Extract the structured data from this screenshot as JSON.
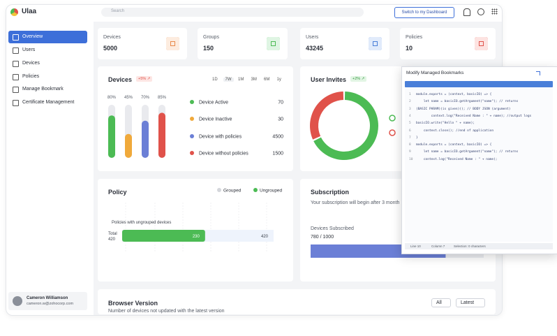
{
  "app": {
    "brand": "Ulaa",
    "search_placeholder": "Search",
    "switch_button": "Switch to my Dashboard"
  },
  "sidebar": {
    "nav": [
      "Overview",
      "Users",
      "Devices",
      "Policies",
      "Manage Bookmark",
      "Certificate Management"
    ],
    "user": {
      "name": "Cameron Williamson",
      "email": "cameron.w@zohocorp.com"
    }
  },
  "stats": [
    {
      "label": "Devices",
      "value": 5000
    },
    {
      "label": "Groups",
      "value": 150
    },
    {
      "label": "Users",
      "value": 43245
    },
    {
      "label": "Policies",
      "value": 10
    }
  ],
  "devices": {
    "title": "Devices",
    "badge": "+5% ↗",
    "ranges": [
      "1D",
      "7W",
      "1M",
      "3M",
      "6M",
      "1y"
    ],
    "bars": {
      "values": [
        80,
        45,
        70,
        85
      ],
      "value_labels": [
        "80%",
        "45%",
        "70%",
        "85%"
      ],
      "colors": [
        "#4cbb54",
        "#f0a93b",
        "#6b7fd6",
        "#e0524a"
      ]
    },
    "legend": [
      {
        "name": "Device Active",
        "value": 70,
        "color": "#4cbb54"
      },
      {
        "name": "Device Inactive",
        "value": 30,
        "color": "#f0a93b"
      },
      {
        "name": "Device with policies",
        "value": 4500,
        "color": "#6b7fd6"
      },
      {
        "name": "Device without policies",
        "value": 1500,
        "color": "#e0524a"
      }
    ]
  },
  "user_invites": {
    "title": "User Invites",
    "badge": "+2% ↗",
    "donut": {
      "values": [
        68,
        32
      ],
      "colors": [
        "#4cbb54",
        "#e0524a"
      ]
    }
  },
  "policy": {
    "title": "Policy",
    "legend": [
      {
        "name": "Grouped",
        "color": "#d4d6db"
      },
      {
        "name": "Ungrouped",
        "color": "#4cbb54"
      }
    ],
    "caption": "Policies with ungrouped devices",
    "total_label": "Total",
    "total": 420,
    "ungrouped": 230
  },
  "subscription": {
    "title": "Subscription",
    "note": "Your subscription will begin after 3 month",
    "devices_label": "Devices Subscribed",
    "subscribed": {
      "value": 780,
      "max": 1000,
      "label": "780 / 1000"
    }
  },
  "browser_version": {
    "title": "Browser Version",
    "subtitle": "Number of devices not updated with the latest version",
    "filters": [
      "All",
      "Latest"
    ]
  },
  "modal": {
    "title": "Modify Managed Bookmarks",
    "lines": [
      {
        "n": 1,
        "text": "module.exports = (context, basicIO) => {"
      },
      {
        "n": 2,
        "text": "    let name = basicIO.getArgument(\"name\"); // returns"
      },
      {
        "n": 3,
        "text": "(BASIC PARAM)(is given)(); // BODY JSON (argument)"
      },
      {
        "n": 4,
        "text": "        context.log(\"Received Name : \" + name); //output logs"
      },
      {
        "n": 5,
        "text": "basicIO.write(\"Hello \" + name);"
      },
      {
        "n": 6,
        "text": "    context.close(); //end of application"
      },
      {
        "n": 7,
        "text": "}"
      },
      {
        "n": 8,
        "text": "module.exports = (context, basicIO) => {"
      },
      {
        "n": 9,
        "text": "    let name = basicIO.getArgument(\"name\"); // returns"
      },
      {
        "n": 10,
        "text": "    context.log(\"Received Name : \" + name);"
      }
    ],
    "status": [
      "Line 10",
      "Column 7",
      "Selection: 0 characters"
    ]
  }
}
